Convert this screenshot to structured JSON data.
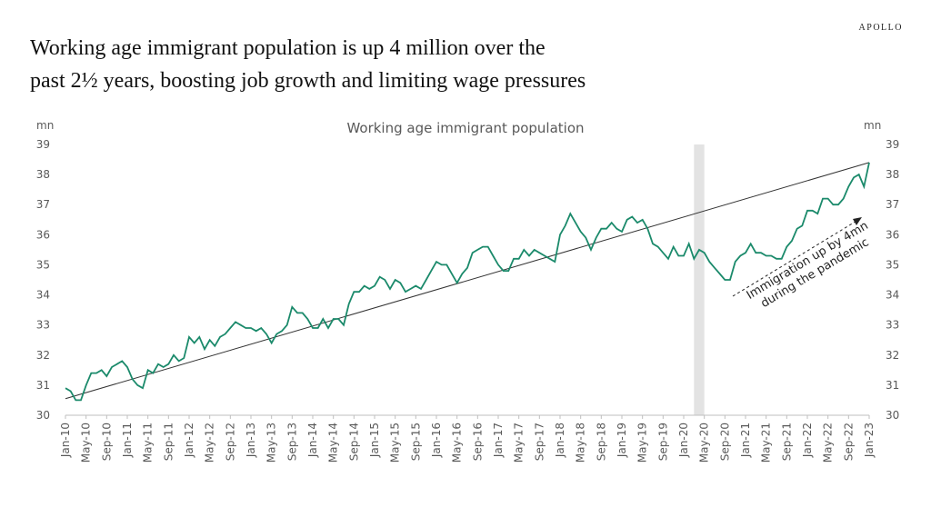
{
  "brand": "APOLLO",
  "headline": [
    "Working age immigrant population is up 4 million over the",
    "past 2½ years, boosting job growth and limiting wage pressures"
  ],
  "chart_data": {
    "type": "line",
    "title": "Working age immigrant population",
    "y_unit": "mn",
    "y2_unit": "mn",
    "categories": [
      "Jan-10",
      null,
      null,
      null,
      "May-10",
      null,
      null,
      null,
      "Sep-10",
      null,
      null,
      null,
      "Jan-11",
      null,
      null,
      null,
      "May-11",
      null,
      null,
      null,
      "Sep-11",
      null,
      null,
      null,
      "Jan-12",
      null,
      null,
      null,
      "May-12",
      null,
      null,
      null,
      "Sep-12",
      null,
      null,
      null,
      "Jan-13",
      null,
      null,
      null,
      "May-13",
      null,
      null,
      null,
      "Sep-13",
      null,
      null,
      null,
      "Jan-14",
      null,
      null,
      null,
      "May-14",
      null,
      null,
      null,
      "Sep-14",
      null,
      null,
      null,
      "Jan-15",
      null,
      null,
      null,
      "May-15",
      null,
      null,
      null,
      "Sep-15",
      null,
      null,
      null,
      "Jan-16",
      null,
      null,
      null,
      "May-16",
      null,
      null,
      null,
      "Sep-16",
      null,
      null,
      null,
      "Jan-17",
      null,
      null,
      null,
      "May-17",
      null,
      null,
      null,
      "Sep-17",
      null,
      null,
      null,
      "Jan-18",
      null,
      null,
      null,
      "May-18",
      null,
      null,
      null,
      "Sep-18",
      null,
      null,
      null,
      "Jan-19",
      null,
      null,
      null,
      "May-19",
      null,
      null,
      null,
      "Sep-19",
      null,
      null,
      null,
      "Jan-20",
      null,
      null,
      null,
      "May-20",
      null,
      null,
      null,
      "Sep-20",
      null,
      null,
      null,
      "Jan-21",
      null,
      null,
      null,
      "May-21",
      null,
      null,
      null,
      "Sep-21",
      null,
      null,
      null,
      "Jan-22",
      null,
      null,
      null,
      "May-22",
      null,
      null,
      null,
      "Sep-22",
      null,
      null,
      null,
      "Jan-23"
    ],
    "series": [
      {
        "color": "#1b8a6b",
        "values": [
          30.9,
          30.8,
          30.5,
          30.5,
          31.0,
          31.4,
          31.4,
          31.5,
          31.3,
          31.6,
          31.7,
          31.8,
          31.6,
          31.2,
          31.0,
          30.9,
          31.5,
          31.4,
          31.7,
          31.6,
          31.7,
          32.0,
          31.8,
          31.9,
          32.6,
          32.4,
          32.6,
          32.2,
          32.5,
          32.3,
          32.6,
          32.7,
          32.9,
          33.1,
          33.0,
          32.9,
          32.9,
          32.8,
          32.9,
          32.7,
          32.4,
          32.7,
          32.8,
          33.0,
          33.6,
          33.4,
          33.4,
          33.2,
          32.9,
          32.9,
          33.2,
          32.9,
          33.2,
          33.2,
          33.0,
          33.7,
          34.1,
          34.1,
          34.3,
          34.2,
          34.3,
          34.6,
          34.5,
          34.2,
          34.5,
          34.4,
          34.1,
          34.2,
          34.3,
          34.2,
          34.5,
          34.8,
          35.1,
          35.0,
          35.0,
          34.7,
          34.4,
          34.7,
          34.9,
          35.4,
          35.5,
          35.6,
          35.6,
          35.3,
          35.0,
          34.8,
          34.8,
          35.2,
          35.2,
          35.5,
          35.3,
          35.5,
          35.4,
          35.3,
          35.2,
          35.1,
          36.0,
          36.3,
          36.7,
          36.4,
          36.1,
          35.9,
          35.5,
          35.9,
          36.2,
          36.2,
          36.4,
          36.2,
          36.1,
          36.5,
          36.6,
          36.4,
          36.5,
          36.2,
          35.7,
          35.6,
          35.4,
          35.2,
          35.6,
          35.3,
          35.3,
          35.7,
          35.2,
          35.5,
          35.4,
          35.1,
          34.9,
          34.7,
          34.5,
          34.5,
          35.1,
          35.3,
          35.4,
          35.7,
          35.4,
          35.4,
          35.3,
          35.3,
          35.2,
          35.2,
          35.6,
          35.8,
          36.2,
          36.3,
          36.8,
          36.8,
          36.7,
          37.2,
          37.2,
          37.0,
          37.0,
          37.2,
          37.6,
          37.9,
          38.0,
          37.6,
          38.4
        ]
      }
    ],
    "trend_line": [
      30.55,
      38.4
    ],
    "shade_x": [
      122,
      124
    ],
    "ylim": [
      30,
      39
    ],
    "yticks": [
      30,
      31,
      32,
      33,
      34,
      35,
      36,
      37,
      38,
      39
    ],
    "y2lim": [
      30,
      39
    ],
    "y2ticks": [
      30,
      31,
      32,
      33,
      34,
      35,
      36,
      37,
      38,
      39
    ],
    "annotation": [
      "Immigration up by 4mn",
      "during the pandemic"
    ]
  }
}
